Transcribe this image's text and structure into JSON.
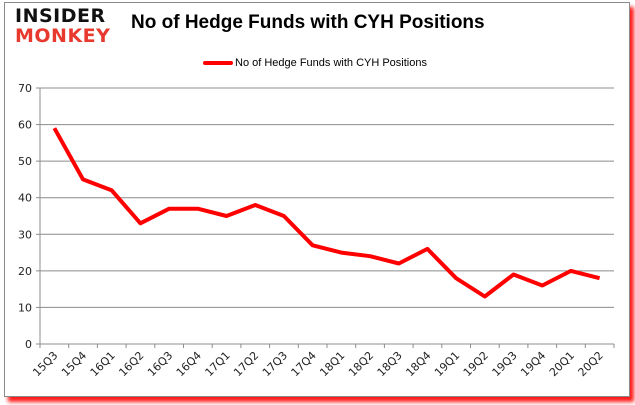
{
  "logo": {
    "line1": "INSIDER",
    "line2": "MONKEY"
  },
  "chart_data": {
    "type": "line",
    "title": "No of Hedge Funds with CYH Positions",
    "xlabel": "",
    "ylabel": "",
    "categories": [
      "15Q3",
      "15Q4",
      "16Q1",
      "16Q2",
      "16Q3",
      "16Q4",
      "17Q1",
      "17Q2",
      "17Q3",
      "17Q4",
      "18Q1",
      "18Q2",
      "18Q3",
      "18Q4",
      "19Q1",
      "19Q2",
      "19Q3",
      "19Q4",
      "20Q1",
      "20Q2"
    ],
    "series": [
      {
        "name": "No of Hedge Funds with CYH Positions",
        "color": "#ff0000",
        "values": [
          59,
          45,
          42,
          33,
          37,
          37,
          35,
          38,
          35,
          27,
          25,
          24,
          22,
          26,
          18,
          13,
          19,
          16,
          20,
          18
        ]
      }
    ],
    "ylim": [
      0,
      70
    ],
    "yticks": [
      0,
      10,
      20,
      30,
      40,
      50,
      60,
      70
    ],
    "grid": true,
    "legend_position": "top"
  }
}
